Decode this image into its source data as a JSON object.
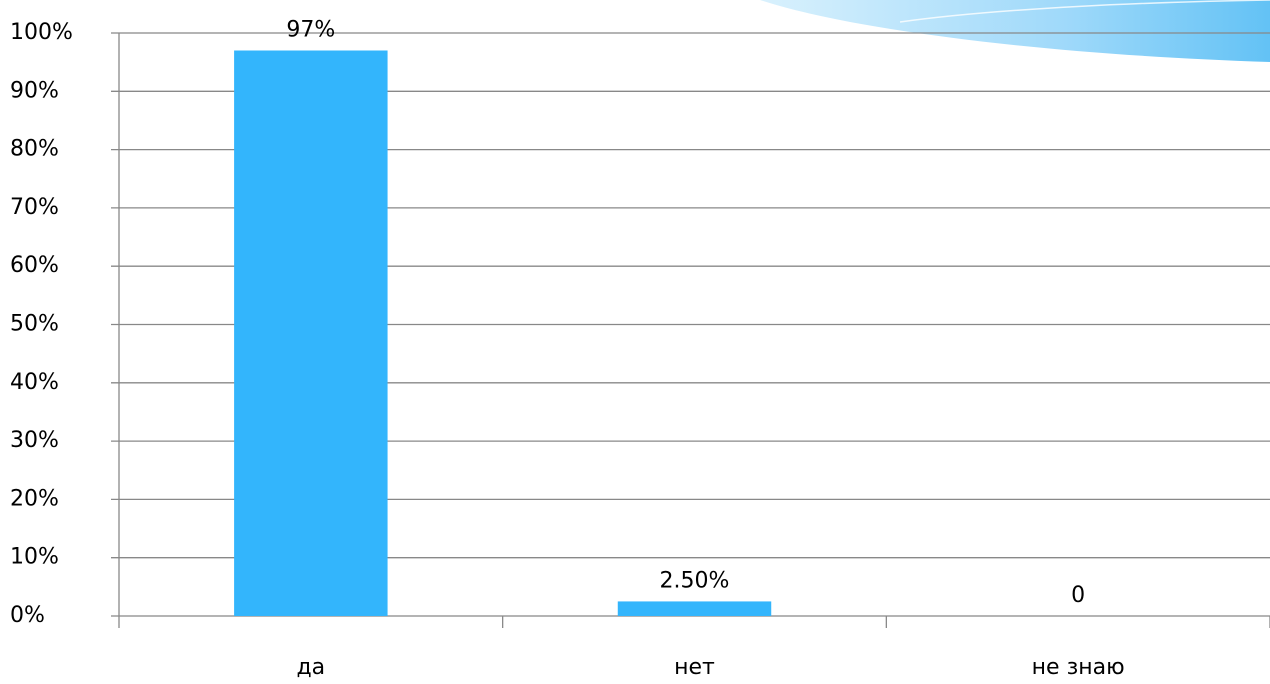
{
  "chart_data": {
    "type": "bar",
    "categories": [
      "да",
      "нет",
      "не знаю"
    ],
    "values": [
      97,
      2.5,
      0
    ],
    "value_labels": [
      "97%",
      "2.50%",
      "0"
    ],
    "color": "#33b5fc",
    "ylim": [
      0,
      100
    ],
    "yticks": [
      {
        "value": 0,
        "label": "0%"
      },
      {
        "value": 10,
        "label": "10%"
      },
      {
        "value": 20,
        "label": "20%"
      },
      {
        "value": 30,
        "label": "30%"
      },
      {
        "value": 40,
        "label": "40%"
      },
      {
        "value": 50,
        "label": "50%"
      },
      {
        "value": 60,
        "label": "60%"
      },
      {
        "value": 70,
        "label": "70%"
      },
      {
        "value": 80,
        "label": "80%"
      },
      {
        "value": 90,
        "label": "90%"
      },
      {
        "value": 100,
        "label": "100%"
      }
    ],
    "grid": true
  }
}
